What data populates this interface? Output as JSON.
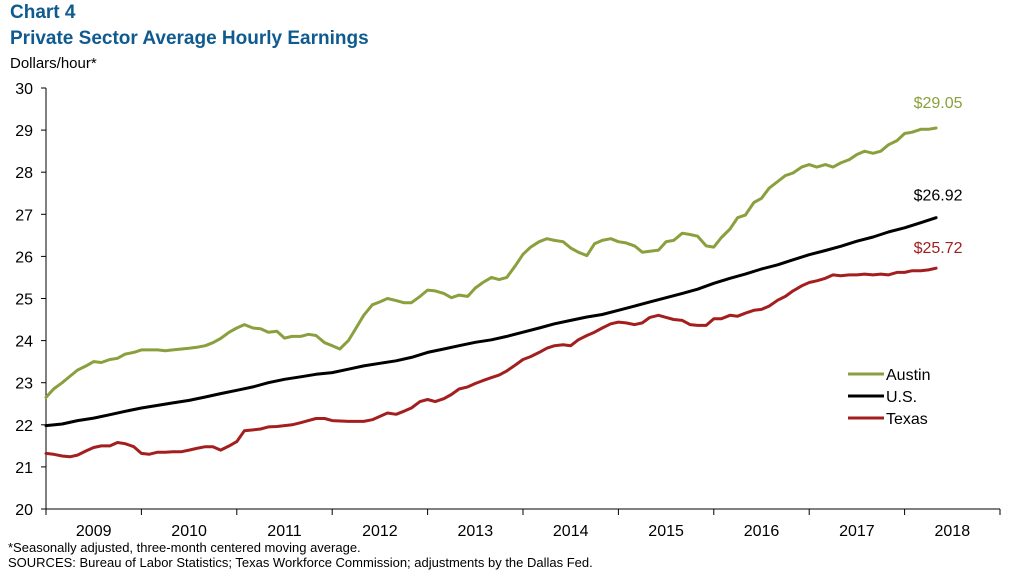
{
  "header": {
    "chart_number": "Chart 4",
    "title": "Private Sector Average Hourly Earnings",
    "y_unit": "Dollars/hour*"
  },
  "footer": {
    "note": "*Seasonally adjusted, three-month centered moving average.",
    "sources": "SOURCES:  Bureau of Labor Statistics; Texas Workforce Commission;  adjustments by the Dallas Fed."
  },
  "chart_data": {
    "type": "line",
    "title": "Private Sector Average Hourly Earnings",
    "ylabel": "Dollars/hour*",
    "xlabel": "",
    "ylim": [
      20,
      30
    ],
    "xlim": [
      2009.0,
      2019.0
    ],
    "y_ticks": [
      20,
      21,
      22,
      23,
      24,
      25,
      26,
      27,
      28,
      29,
      30
    ],
    "x_tick_labels": [
      "2009",
      "2010",
      "2011",
      "2012",
      "2013",
      "2014",
      "2015",
      "2016",
      "2017",
      "2018"
    ],
    "grid": false,
    "legend_position": "right",
    "series": [
      {
        "name": "Austin",
        "color": "#8a9f3d",
        "end_label": "$29.05",
        "points": [
          [
            2009.0,
            22.65
          ],
          [
            2009.08,
            22.85
          ],
          [
            2009.17,
            23.0
          ],
          [
            2009.25,
            23.15
          ],
          [
            2009.33,
            23.3
          ],
          [
            2009.42,
            23.4
          ],
          [
            2009.5,
            23.5
          ],
          [
            2009.58,
            23.48
          ],
          [
            2009.67,
            23.55
          ],
          [
            2009.75,
            23.58
          ],
          [
            2009.83,
            23.68
          ],
          [
            2009.92,
            23.72
          ],
          [
            2010.0,
            23.78
          ],
          [
            2010.17,
            23.78
          ],
          [
            2010.25,
            23.76
          ],
          [
            2010.33,
            23.78
          ],
          [
            2010.42,
            23.8
          ],
          [
            2010.5,
            23.82
          ],
          [
            2010.58,
            23.84
          ],
          [
            2010.67,
            23.88
          ],
          [
            2010.75,
            23.95
          ],
          [
            2010.83,
            24.05
          ],
          [
            2010.92,
            24.2
          ],
          [
            2011.0,
            24.3
          ],
          [
            2011.08,
            24.38
          ],
          [
            2011.17,
            24.3
          ],
          [
            2011.25,
            24.28
          ],
          [
            2011.33,
            24.2
          ],
          [
            2011.42,
            24.22
          ],
          [
            2011.5,
            24.06
          ],
          [
            2011.58,
            24.1
          ],
          [
            2011.67,
            24.1
          ],
          [
            2011.75,
            24.15
          ],
          [
            2011.83,
            24.12
          ],
          [
            2011.92,
            23.95
          ],
          [
            2012.0,
            23.88
          ],
          [
            2012.08,
            23.8
          ],
          [
            2012.17,
            24.0
          ],
          [
            2012.25,
            24.3
          ],
          [
            2012.33,
            24.6
          ],
          [
            2012.42,
            24.85
          ],
          [
            2012.5,
            24.92
          ],
          [
            2012.58,
            25.0
          ],
          [
            2012.67,
            24.95
          ],
          [
            2012.75,
            24.9
          ],
          [
            2012.83,
            24.9
          ],
          [
            2012.92,
            25.05
          ],
          [
            2013.0,
            25.2
          ],
          [
            2013.08,
            25.18
          ],
          [
            2013.17,
            25.12
          ],
          [
            2013.25,
            25.02
          ],
          [
            2013.33,
            25.08
          ],
          [
            2013.42,
            25.05
          ],
          [
            2013.5,
            25.25
          ],
          [
            2013.58,
            25.38
          ],
          [
            2013.67,
            25.5
          ],
          [
            2013.75,
            25.45
          ],
          [
            2013.83,
            25.5
          ],
          [
            2013.92,
            25.78
          ],
          [
            2014.0,
            26.05
          ],
          [
            2014.08,
            26.22
          ],
          [
            2014.17,
            26.35
          ],
          [
            2014.25,
            26.42
          ],
          [
            2014.33,
            26.38
          ],
          [
            2014.42,
            26.35
          ],
          [
            2014.5,
            26.2
          ],
          [
            2014.58,
            26.1
          ],
          [
            2014.67,
            26.02
          ],
          [
            2014.75,
            26.3
          ],
          [
            2014.83,
            26.38
          ],
          [
            2014.92,
            26.42
          ],
          [
            2015.0,
            26.35
          ],
          [
            2015.08,
            26.32
          ],
          [
            2015.17,
            26.25
          ],
          [
            2015.25,
            26.1
          ],
          [
            2015.33,
            26.12
          ],
          [
            2015.42,
            26.15
          ],
          [
            2015.5,
            26.35
          ],
          [
            2015.58,
            26.38
          ],
          [
            2015.67,
            26.55
          ],
          [
            2015.75,
            26.52
          ],
          [
            2015.83,
            26.48
          ],
          [
            2015.92,
            26.25
          ],
          [
            2016.0,
            26.22
          ],
          [
            2016.08,
            26.45
          ],
          [
            2016.17,
            26.65
          ],
          [
            2016.25,
            26.92
          ],
          [
            2016.33,
            26.98
          ],
          [
            2016.42,
            27.28
          ],
          [
            2016.5,
            27.38
          ],
          [
            2016.58,
            27.62
          ],
          [
            2016.67,
            27.78
          ],
          [
            2016.75,
            27.92
          ],
          [
            2016.83,
            27.98
          ],
          [
            2016.92,
            28.12
          ],
          [
            2017.0,
            28.18
          ],
          [
            2017.08,
            28.12
          ],
          [
            2017.17,
            28.18
          ],
          [
            2017.25,
            28.12
          ],
          [
            2017.33,
            28.22
          ],
          [
            2017.42,
            28.3
          ],
          [
            2017.5,
            28.42
          ],
          [
            2017.58,
            28.5
          ],
          [
            2017.67,
            28.45
          ],
          [
            2017.75,
            28.5
          ],
          [
            2017.83,
            28.65
          ],
          [
            2017.92,
            28.75
          ],
          [
            2018.0,
            28.92
          ],
          [
            2018.08,
            28.95
          ],
          [
            2018.17,
            29.02
          ],
          [
            2018.25,
            29.02
          ],
          [
            2018.33,
            29.05
          ]
        ]
      },
      {
        "name": "U.S.",
        "color": "#000000",
        "end_label": "$26.92",
        "points": [
          [
            2009.0,
            21.98
          ],
          [
            2009.17,
            22.02
          ],
          [
            2009.33,
            22.1
          ],
          [
            2009.5,
            22.16
          ],
          [
            2009.67,
            22.24
          ],
          [
            2009.83,
            22.32
          ],
          [
            2010.0,
            22.4
          ],
          [
            2010.17,
            22.46
          ],
          [
            2010.33,
            22.52
          ],
          [
            2010.5,
            22.58
          ],
          [
            2010.67,
            22.66
          ],
          [
            2010.83,
            22.74
          ],
          [
            2011.0,
            22.82
          ],
          [
            2011.17,
            22.9
          ],
          [
            2011.33,
            23.0
          ],
          [
            2011.5,
            23.08
          ],
          [
            2011.67,
            23.14
          ],
          [
            2011.83,
            23.2
          ],
          [
            2012.0,
            23.24
          ],
          [
            2012.17,
            23.32
          ],
          [
            2012.33,
            23.4
          ],
          [
            2012.5,
            23.46
          ],
          [
            2012.67,
            23.52
          ],
          [
            2012.83,
            23.6
          ],
          [
            2013.0,
            23.72
          ],
          [
            2013.17,
            23.8
          ],
          [
            2013.33,
            23.88
          ],
          [
            2013.5,
            23.96
          ],
          [
            2013.67,
            24.02
          ],
          [
            2013.83,
            24.1
          ],
          [
            2014.0,
            24.2
          ],
          [
            2014.17,
            24.3
          ],
          [
            2014.33,
            24.4
          ],
          [
            2014.5,
            24.48
          ],
          [
            2014.67,
            24.56
          ],
          [
            2014.83,
            24.62
          ],
          [
            2015.0,
            24.72
          ],
          [
            2015.17,
            24.82
          ],
          [
            2015.33,
            24.92
          ],
          [
            2015.5,
            25.02
          ],
          [
            2015.67,
            25.12
          ],
          [
            2015.83,
            25.22
          ],
          [
            2016.0,
            25.36
          ],
          [
            2016.17,
            25.48
          ],
          [
            2016.33,
            25.58
          ],
          [
            2016.5,
            25.7
          ],
          [
            2016.67,
            25.8
          ],
          [
            2016.83,
            25.92
          ],
          [
            2017.0,
            26.04
          ],
          [
            2017.17,
            26.14
          ],
          [
            2017.33,
            26.24
          ],
          [
            2017.5,
            26.36
          ],
          [
            2017.67,
            26.46
          ],
          [
            2017.83,
            26.58
          ],
          [
            2018.0,
            26.68
          ],
          [
            2018.17,
            26.8
          ],
          [
            2018.33,
            26.92
          ]
        ]
      },
      {
        "name": "Texas",
        "color": "#a31f1f",
        "end_label": "$25.72",
        "points": [
          [
            2009.0,
            21.32
          ],
          [
            2009.08,
            21.3
          ],
          [
            2009.17,
            21.26
          ],
          [
            2009.25,
            21.24
          ],
          [
            2009.33,
            21.28
          ],
          [
            2009.42,
            21.38
          ],
          [
            2009.5,
            21.46
          ],
          [
            2009.58,
            21.5
          ],
          [
            2009.67,
            21.5
          ],
          [
            2009.75,
            21.58
          ],
          [
            2009.83,
            21.55
          ],
          [
            2009.92,
            21.48
          ],
          [
            2010.0,
            21.32
          ],
          [
            2010.08,
            21.3
          ],
          [
            2010.17,
            21.35
          ],
          [
            2010.25,
            21.35
          ],
          [
            2010.33,
            21.36
          ],
          [
            2010.42,
            21.36
          ],
          [
            2010.5,
            21.4
          ],
          [
            2010.58,
            21.44
          ],
          [
            2010.67,
            21.48
          ],
          [
            2010.75,
            21.48
          ],
          [
            2010.83,
            21.4
          ],
          [
            2010.92,
            21.5
          ],
          [
            2011.0,
            21.6
          ],
          [
            2011.08,
            21.86
          ],
          [
            2011.17,
            21.88
          ],
          [
            2011.25,
            21.9
          ],
          [
            2011.33,
            21.95
          ],
          [
            2011.42,
            21.96
          ],
          [
            2011.5,
            21.98
          ],
          [
            2011.58,
            22.0
          ],
          [
            2011.67,
            22.05
          ],
          [
            2011.75,
            22.1
          ],
          [
            2011.83,
            22.15
          ],
          [
            2011.92,
            22.15
          ],
          [
            2012.0,
            22.1
          ],
          [
            2012.17,
            22.08
          ],
          [
            2012.33,
            22.08
          ],
          [
            2012.42,
            22.12
          ],
          [
            2012.5,
            22.2
          ],
          [
            2012.58,
            22.28
          ],
          [
            2012.67,
            22.25
          ],
          [
            2012.75,
            22.32
          ],
          [
            2012.83,
            22.4
          ],
          [
            2012.92,
            22.55
          ],
          [
            2013.0,
            22.6
          ],
          [
            2013.08,
            22.55
          ],
          [
            2013.17,
            22.62
          ],
          [
            2013.25,
            22.72
          ],
          [
            2013.33,
            22.85
          ],
          [
            2013.42,
            22.9
          ],
          [
            2013.5,
            22.98
          ],
          [
            2013.58,
            23.05
          ],
          [
            2013.67,
            23.12
          ],
          [
            2013.75,
            23.18
          ],
          [
            2013.83,
            23.28
          ],
          [
            2013.92,
            23.42
          ],
          [
            2014.0,
            23.55
          ],
          [
            2014.08,
            23.62
          ],
          [
            2014.17,
            23.72
          ],
          [
            2014.25,
            23.82
          ],
          [
            2014.33,
            23.88
          ],
          [
            2014.42,
            23.9
          ],
          [
            2014.5,
            23.88
          ],
          [
            2014.58,
            24.02
          ],
          [
            2014.67,
            24.12
          ],
          [
            2014.75,
            24.2
          ],
          [
            2014.83,
            24.3
          ],
          [
            2014.92,
            24.4
          ],
          [
            2015.0,
            24.44
          ],
          [
            2015.08,
            24.42
          ],
          [
            2015.17,
            24.38
          ],
          [
            2015.25,
            24.42
          ],
          [
            2015.33,
            24.55
          ],
          [
            2015.42,
            24.6
          ],
          [
            2015.5,
            24.55
          ],
          [
            2015.58,
            24.5
          ],
          [
            2015.67,
            24.48
          ],
          [
            2015.75,
            24.38
          ],
          [
            2015.83,
            24.36
          ],
          [
            2015.92,
            24.36
          ],
          [
            2016.0,
            24.52
          ],
          [
            2016.08,
            24.52
          ],
          [
            2016.17,
            24.6
          ],
          [
            2016.25,
            24.58
          ],
          [
            2016.33,
            24.65
          ],
          [
            2016.42,
            24.72
          ],
          [
            2016.5,
            24.74
          ],
          [
            2016.58,
            24.82
          ],
          [
            2016.67,
            24.96
          ],
          [
            2016.75,
            25.05
          ],
          [
            2016.83,
            25.18
          ],
          [
            2016.92,
            25.3
          ],
          [
            2017.0,
            25.38
          ],
          [
            2017.08,
            25.42
          ],
          [
            2017.17,
            25.48
          ],
          [
            2017.25,
            25.56
          ],
          [
            2017.33,
            25.54
          ],
          [
            2017.42,
            25.56
          ],
          [
            2017.5,
            25.56
          ],
          [
            2017.58,
            25.58
          ],
          [
            2017.67,
            25.56
          ],
          [
            2017.75,
            25.58
          ],
          [
            2017.83,
            25.56
          ],
          [
            2017.92,
            25.62
          ],
          [
            2018.0,
            25.62
          ],
          [
            2018.08,
            25.66
          ],
          [
            2018.17,
            25.66
          ],
          [
            2018.25,
            25.68
          ],
          [
            2018.33,
            25.72
          ]
        ]
      }
    ]
  }
}
